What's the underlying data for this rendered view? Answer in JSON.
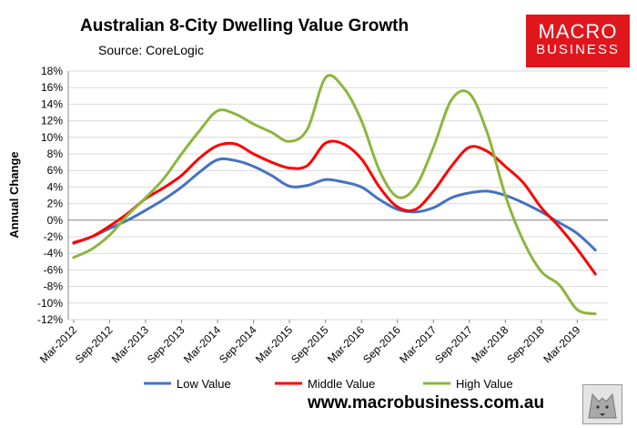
{
  "title": "Australian 8-City Dwelling Value Growth",
  "subtitle": "Source: CoreLogic",
  "logo": {
    "line1": "MACRO",
    "line2": "BUSINESS"
  },
  "website": "www.macrobusiness.com.au",
  "colors": {
    "low": "#4472c4",
    "middle": "#ff0000",
    "high": "#8db53c"
  },
  "icons": {
    "corner_logo": "wolf-logo-icon"
  },
  "chart_data": {
    "type": "line",
    "title": "Australian 8-City Dwelling Value Growth",
    "xlabel": "",
    "ylabel": "Annual Change",
    "ylim": [
      -12,
      18
    ],
    "ytick_step": 2,
    "y_ticks": [
      "18%",
      "16%",
      "14%",
      "12%",
      "10%",
      "8%",
      "6%",
      "4%",
      "2%",
      "0%",
      "-2%",
      "-4%",
      "-6%",
      "-8%",
      "-10%",
      "-12%"
    ],
    "x_tick_labels": [
      "Mar-2012",
      "Sep-2012",
      "Mar-2013",
      "Sep-2013",
      "Mar-2014",
      "Sep-2014",
      "Mar-2015",
      "Sep-2015",
      "Mar-2016",
      "Sep-2016",
      "Mar-2017",
      "Sep-2017",
      "Mar-2018",
      "Sep-2018",
      "Mar-2019"
    ],
    "legend_position": "bottom",
    "grid": "horizontal",
    "x": [
      "Mar-2012",
      "Jun-2012",
      "Sep-2012",
      "Dec-2012",
      "Mar-2013",
      "Jun-2013",
      "Sep-2013",
      "Dec-2013",
      "Mar-2014",
      "Jun-2014",
      "Sep-2014",
      "Dec-2014",
      "Mar-2015",
      "Jun-2015",
      "Sep-2015",
      "Dec-2015",
      "Mar-2016",
      "Jun-2016",
      "Sep-2016",
      "Dec-2016",
      "Mar-2017",
      "Jun-2017",
      "Sep-2017",
      "Dec-2017",
      "Mar-2018",
      "Jun-2018",
      "Sep-2018",
      "Dec-2018",
      "Mar-2019",
      "Jun-2019"
    ],
    "series": [
      {
        "name": "Low Value",
        "color": "#4472c4",
        "values": [
          -2.8,
          -2.0,
          -1.0,
          0.0,
          1.2,
          2.5,
          4.0,
          5.8,
          7.3,
          7.2,
          6.5,
          5.4,
          4.1,
          4.2,
          4.9,
          4.6,
          4.0,
          2.5,
          1.3,
          1.0,
          1.5,
          2.7,
          3.3,
          3.5,
          3.0,
          2.1,
          1.0,
          -0.3,
          -1.6,
          -3.6
        ]
      },
      {
        "name": "Middle Value",
        "color": "#ff0000",
        "values": [
          -2.7,
          -2.0,
          -0.7,
          0.8,
          2.6,
          3.9,
          5.4,
          7.5,
          9.0,
          9.2,
          8.0,
          7.0,
          6.3,
          6.6,
          9.3,
          9.2,
          7.4,
          4.0,
          1.6,
          1.3,
          3.5,
          6.5,
          8.8,
          8.3,
          6.5,
          4.5,
          1.5,
          -0.8,
          -3.5,
          -6.5
        ]
      },
      {
        "name": "High Value",
        "color": "#8db53c",
        "values": [
          -4.5,
          -3.5,
          -1.8,
          0.6,
          2.7,
          5.0,
          8.0,
          10.8,
          13.2,
          12.8,
          11.6,
          10.6,
          9.5,
          11.0,
          17.2,
          16.0,
          12.0,
          6.0,
          2.8,
          4.0,
          8.8,
          14.5,
          15.3,
          10.5,
          3.0,
          -2.5,
          -6.2,
          -7.8,
          -10.8,
          -11.3
        ]
      }
    ]
  }
}
